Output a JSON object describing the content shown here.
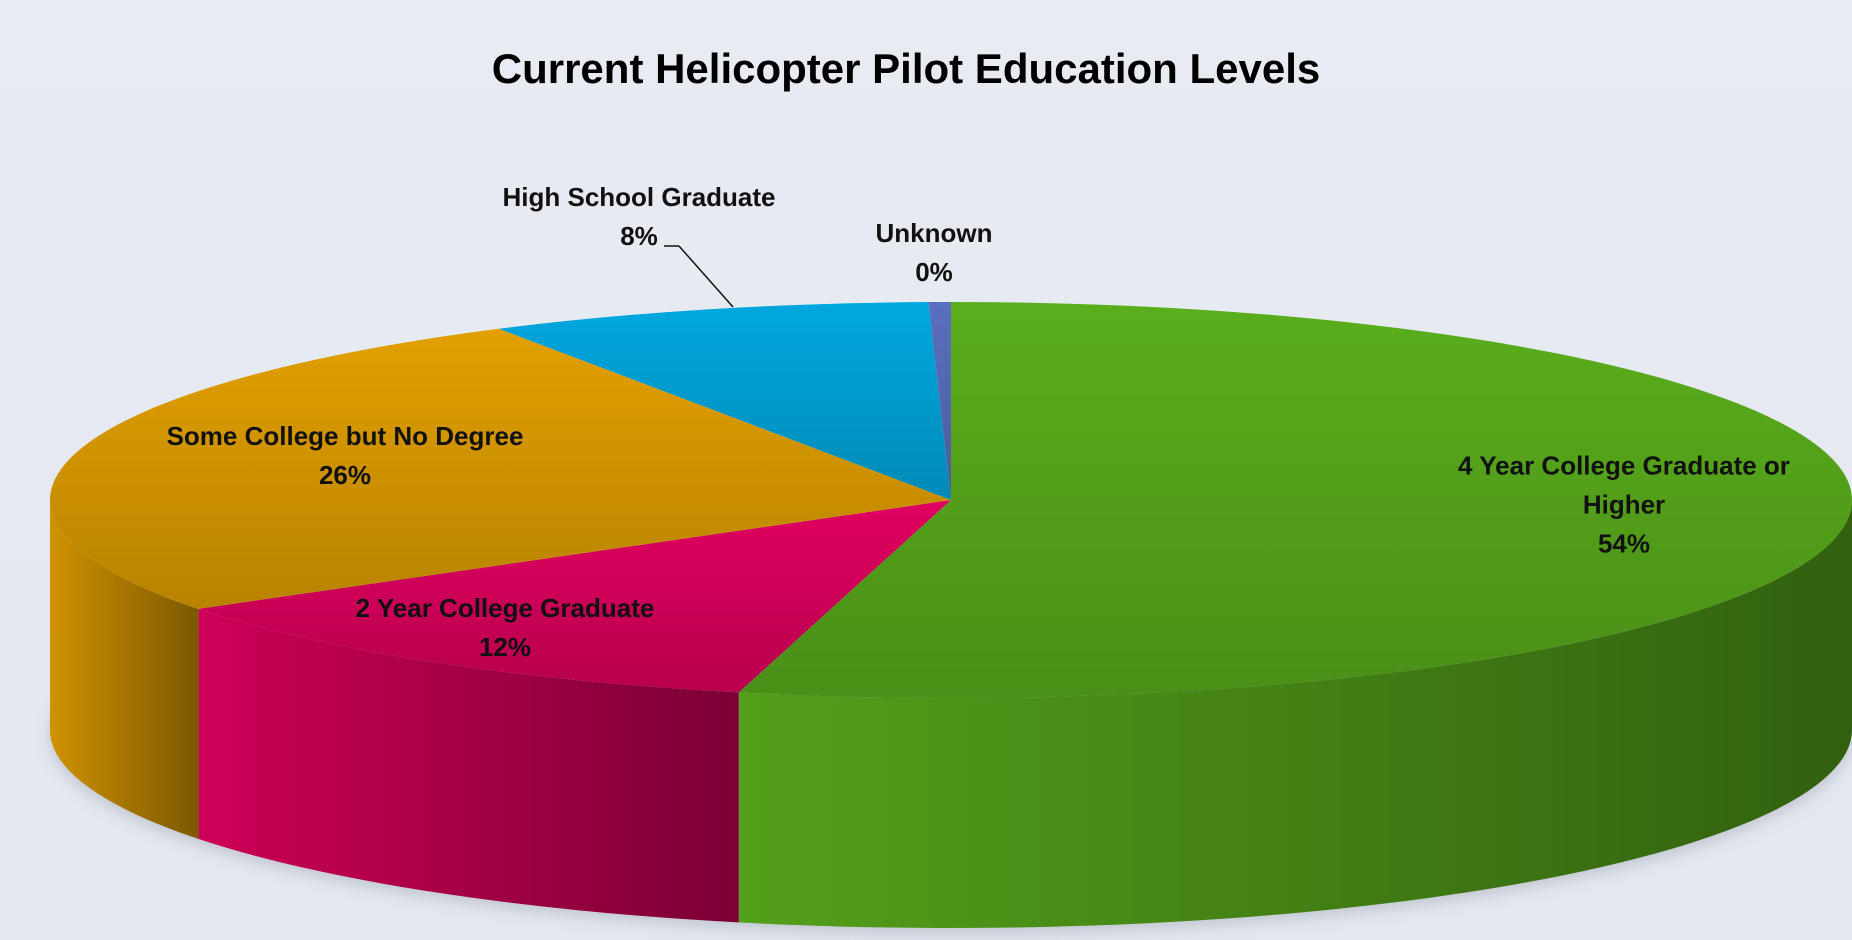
{
  "chart_data": {
    "type": "pie",
    "title": "Current Helicopter Pilot Education Levels",
    "categories": [
      "4 Year College Graduate or Higher",
      "2 Year College Graduate",
      "Some College but No Degree",
      "High School Graduate",
      "Unknown"
    ],
    "values": [
      54,
      12,
      26,
      8,
      0.4
    ],
    "value_labels": [
      "54%",
      "12%",
      "26%",
      "8%",
      "0%"
    ],
    "colors": [
      "#5aae1c",
      "#e0005f",
      "#e2a000",
      "#00a8df",
      "#5b6fc0"
    ]
  }
}
